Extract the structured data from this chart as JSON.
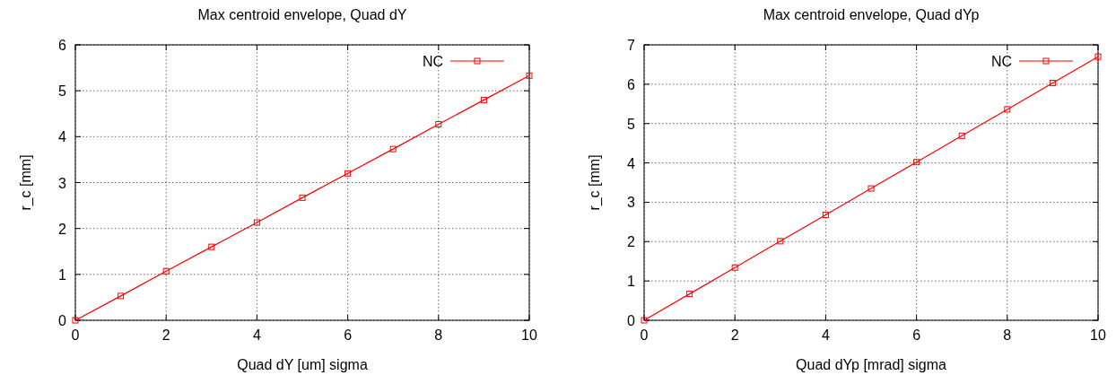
{
  "chart_data": [
    {
      "type": "line",
      "title": "Max centroid envelope, Quad dY",
      "xlabel": "Quad dY [um] sigma",
      "ylabel": "r_c [mm]",
      "x": [
        0,
        1,
        2,
        3,
        4,
        5,
        6,
        7,
        8,
        9,
        10
      ],
      "xlim": [
        0,
        10
      ],
      "xticks": [
        0,
        2,
        4,
        6,
        8,
        10
      ],
      "ylim": [
        0,
        6
      ],
      "yticks": [
        0,
        1,
        2,
        3,
        4,
        5,
        6
      ],
      "grid": true,
      "legend": "top right",
      "marker": "square",
      "line_style": "solid",
      "series": [
        {
          "name": "NC",
          "color": "#ff0000",
          "values": [
            0,
            0.53,
            1.07,
            1.6,
            2.13,
            2.67,
            3.2,
            3.73,
            4.27,
            4.8,
            5.33
          ]
        }
      ]
    },
    {
      "type": "line",
      "title": "Max centroid envelope, Quad dYp",
      "xlabel": "Quad dYp [mrad] sigma",
      "ylabel": "r_c [mm]",
      "x": [
        0,
        1,
        2,
        3,
        4,
        5,
        6,
        7,
        8,
        9,
        10
      ],
      "xlim": [
        0,
        10
      ],
      "xticks": [
        0,
        2,
        4,
        6,
        8,
        10
      ],
      "ylim": [
        0,
        7
      ],
      "yticks": [
        0,
        1,
        2,
        3,
        4,
        5,
        6,
        7
      ],
      "grid": true,
      "legend": "top right",
      "marker": "square",
      "line_style": "solid",
      "series": [
        {
          "name": "NC",
          "color": "#ff0000",
          "values": [
            0,
            0.67,
            1.34,
            2.01,
            2.68,
            3.35,
            4.02,
            4.69,
            5.36,
            6.03,
            6.7
          ]
        }
      ]
    }
  ]
}
